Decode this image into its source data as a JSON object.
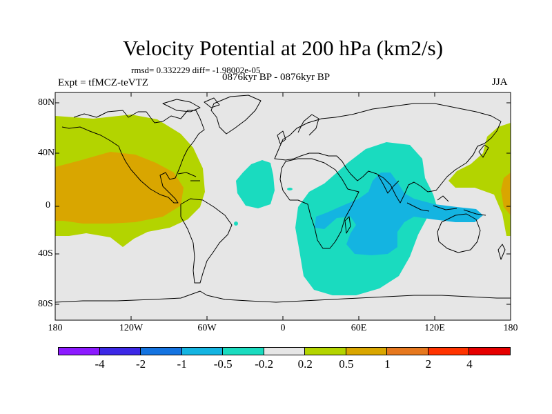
{
  "figure": {
    "title": "Velocity Potential at 200 hPa (km2/s)",
    "stats_line": "rmsd= 0.332229 diff= -1.98002e-05",
    "experiment_label": "Expt = tfMCZ-teVTZ",
    "period_label": "0876kyr BP - 0876kyr BP",
    "season_label": "JJA"
  },
  "colors": {
    "ocean_land_background": "#e6e6e6",
    "coastline": "#000000",
    "fill_plus_0_2_to_0_5": "#b3d400",
    "fill_plus_0_5_to_1": "#d9a600",
    "fill_minus_0_2_to_minus_0_5": "#1adbbf",
    "fill_minus_0_5_to_minus_1": "#14b4e1"
  },
  "chart_data": {
    "type": "filled-contour-map",
    "projection": "cylindrical-equidistant",
    "variable": "velocity potential at 200 hPa",
    "units": "km2/s",
    "xlim": [
      -180,
      180
    ],
    "ylim": [
      -90,
      90
    ],
    "y_tick_labels": [
      "80N",
      "40N",
      "0",
      "40S",
      "80S"
    ],
    "x_tick_labels": [
      "180",
      "120W",
      "60W",
      "0",
      "60E",
      "120E",
      "180"
    ],
    "colorbar": {
      "levels": [
        "-4",
        "-2",
        "-1",
        "-0.5",
        "-0.2",
        "0.2",
        "0.5",
        "1",
        "2",
        "4"
      ],
      "colors": [
        "#8c1aff",
        "#3c28e6",
        "#1473e0",
        "#14b4e1",
        "#1adbbf",
        "#e6e6e6",
        "#b3d400",
        "#d9a600",
        "#e6781e",
        "#ff3300",
        "#e60000"
      ]
    },
    "regions": [
      {
        "name": "positive anomaly over North Pacific and eastern Pacific",
        "level_range": "0.2 to 0.5"
      },
      {
        "name": "positive anomaly core over tropical eastern Pacific",
        "level_range": "0.5 to 1"
      },
      {
        "name": "positive anomaly over western Pacific / Japan",
        "level_range": "0.2 to 0.5"
      },
      {
        "name": "negative anomaly over Indian Ocean, Africa and Southern Ocean",
        "level_range": "-0.2 to -0.5"
      },
      {
        "name": "negative anomaly core over Maritime Continent and Indian Ocean",
        "level_range": "-0.5 to -1"
      },
      {
        "name": "negative anomaly over tropical Atlantic",
        "level_range": "-0.2 to -0.5"
      }
    ]
  }
}
